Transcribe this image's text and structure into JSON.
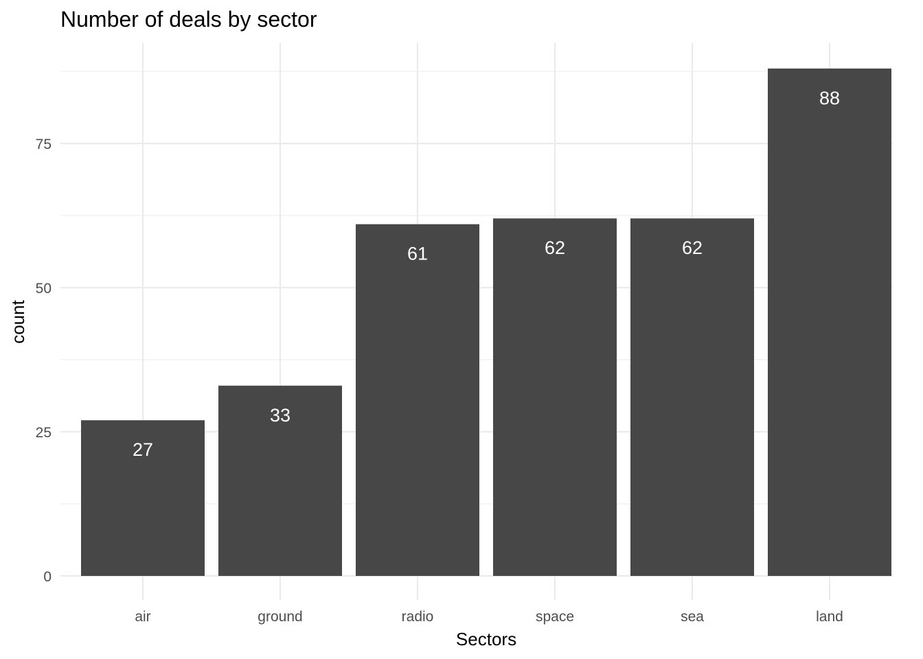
{
  "chart_data": {
    "type": "bar",
    "title": "Number of deals by sector",
    "xlabel": "Sectors",
    "ylabel": "count",
    "categories": [
      "air",
      "ground",
      "radio",
      "space",
      "sea",
      "land"
    ],
    "values": [
      27,
      33,
      61,
      62,
      62,
      88
    ],
    "data_labels": [
      "27",
      "33",
      "61",
      "62",
      "62",
      "88"
    ],
    "ylim": [
      0,
      92.4
    ],
    "yticks": [
      0,
      25,
      50,
      75
    ],
    "ytick_labels": [
      "0",
      "25",
      "50",
      "75"
    ],
    "grid": true,
    "legend": "none",
    "bar_color": "#474747",
    "label_color": "#ffffff"
  }
}
